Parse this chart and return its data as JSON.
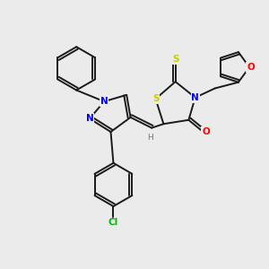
{
  "background_color": "#ebebeb",
  "bond_color": "#1a1a1a",
  "atom_colors": {
    "N": "#0000ff",
    "O": "#ff0000",
    "S": "#cccc00",
    "Cl": "#00bb00",
    "C": "#1a1a1a",
    "H": "#777777"
  },
  "figsize": [
    3.0,
    3.0
  ],
  "dpi": 100
}
